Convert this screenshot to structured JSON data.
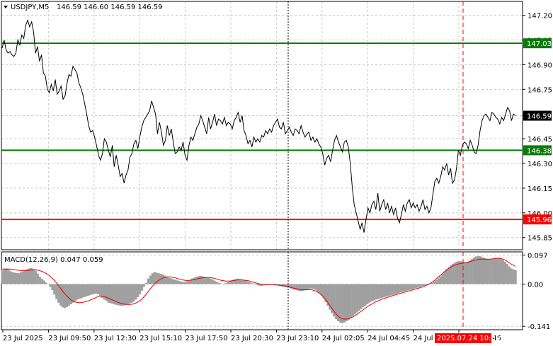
{
  "chart_header": {
    "symbol": "USDJPY,M5",
    "ohlc": "146.59 146.60 146.59 146.59",
    "indicator": "MACD(12,26,9) 0.047 0.059"
  },
  "colors": {
    "background": "#ffffff",
    "grid": "#c8c8c8",
    "price_line": "#000000",
    "green_line": "#0a7a0a",
    "red_line": "#ff0000",
    "macd_hist": "#a0a0a0",
    "signal_line": "#e00000",
    "time_marker": "#ff0000",
    "current_price_bg": "#000000"
  },
  "chart_data": [
    {
      "type": "line",
      "title": "USDJPY,M5",
      "ylim": [
        145.78,
        147.28
      ],
      "y_ticks": [
        "147.20",
        "147.05",
        "146.90",
        "146.75",
        "146.59",
        "146.45",
        "146.30",
        "146.15",
        "146.00",
        "145.85"
      ],
      "y_tick_values": [
        147.2,
        147.05,
        146.9,
        146.75,
        146.59,
        146.45,
        146.3,
        146.15,
        146.0,
        145.85
      ],
      "x_ticks": [
        "23 Jul 2025",
        "23 Jul 09:50",
        "23 Jul 12:30",
        "23 Jul 15:10",
        "23 Jul 17:50",
        "23 Jul 20:30",
        "23 Jul 23:10",
        "24 Jul 02:05",
        "24 Jul 04:45",
        "24 Jul 07:25",
        "24 Jul 12:45"
      ],
      "x_highlight_label": "2025.07.24 10:30",
      "current_price_label": "146.59",
      "current_price": 146.59,
      "horizontal_levels": [
        {
          "label": "147.03",
          "value": 147.03,
          "color": "green"
        },
        {
          "label": "146.38",
          "value": 146.38,
          "color": "green"
        },
        {
          "label": "145.96",
          "value": 145.96,
          "color": "red"
        }
      ],
      "series": [
        {
          "values": [
            147.0,
            147.05,
            146.99,
            146.97,
            146.98,
            146.96,
            146.95,
            146.97,
            147.05,
            147.02,
            147.08,
            147.06,
            147.14,
            147.17,
            147.13,
            147.16,
            147.1,
            146.97,
            147.01,
            146.92,
            146.96,
            146.85,
            146.83,
            146.75,
            146.73,
            146.78,
            146.74,
            146.81,
            146.72,
            146.74,
            146.77,
            146.69,
            146.71,
            146.79,
            146.84,
            146.83,
            146.89,
            146.87,
            146.85,
            146.79,
            146.76,
            146.72,
            146.66,
            146.6,
            146.53,
            146.49,
            146.5,
            146.46,
            146.41,
            146.35,
            146.32,
            146.36,
            146.45,
            146.43,
            146.38,
            146.34,
            146.41,
            146.28,
            146.35,
            146.29,
            146.22,
            146.24,
            146.18,
            146.23,
            146.26,
            146.34,
            146.36,
            146.42,
            146.44,
            146.39,
            146.46,
            146.52,
            146.56,
            146.58,
            146.6,
            146.62,
            146.68,
            146.64,
            146.6,
            146.48,
            146.55,
            146.49,
            146.41,
            146.44,
            146.53,
            146.47,
            146.51,
            146.43,
            146.36,
            146.37,
            146.4,
            146.38,
            146.43,
            146.35,
            146.32,
            146.41,
            146.46,
            146.44,
            146.48,
            146.52,
            146.54,
            146.59,
            146.56,
            146.52,
            146.48,
            146.58,
            146.51,
            146.55,
            146.6,
            146.53,
            146.57,
            146.56,
            146.54,
            146.58,
            146.53,
            146.55,
            146.54,
            146.51,
            146.56,
            146.58,
            146.61,
            146.55,
            146.59,
            146.5,
            146.47,
            146.42,
            146.44,
            146.4,
            146.46,
            146.43,
            146.45,
            146.43,
            146.47,
            146.46,
            146.5,
            146.48,
            146.51,
            146.49,
            146.53,
            146.55,
            146.57,
            146.52,
            146.51,
            146.55,
            146.48,
            146.5,
            146.52,
            146.49,
            146.47,
            146.51,
            146.5,
            146.48,
            146.53,
            146.49,
            146.46,
            146.48,
            146.49,
            146.44,
            146.46,
            146.43,
            146.45,
            146.42,
            146.4,
            146.36,
            146.29,
            146.33,
            146.35,
            146.31,
            146.38,
            146.44,
            146.47,
            146.43,
            146.4,
            146.37,
            146.43,
            146.44,
            146.4,
            146.3,
            146.16,
            146.05,
            146.0,
            145.95,
            145.9,
            145.94,
            145.88,
            145.96,
            146.03,
            146.0,
            146.05,
            146.07,
            146.02,
            146.12,
            146.01,
            146.05,
            146.08,
            146.02,
            146.06,
            146.0,
            146.04,
            145.99,
            146.03,
            145.97,
            145.94,
            145.99,
            146.05,
            146.01,
            146.06,
            146.08,
            146.03,
            146.06,
            146.03,
            146.05,
            146.01,
            146.04,
            146.08,
            146.02,
            146.04,
            146.0,
            146.03,
            146.11,
            146.19,
            146.21,
            146.18,
            146.22,
            146.28,
            146.26,
            146.3,
            146.23,
            146.27,
            146.18,
            146.2,
            146.27,
            146.38,
            146.35,
            146.41,
            146.43,
            146.42,
            146.39,
            146.44,
            146.41,
            146.37,
            146.36,
            146.41,
            146.5,
            146.56,
            146.59,
            146.6,
            146.58,
            146.56,
            146.61,
            146.6,
            146.58,
            146.57,
            146.54,
            146.58,
            146.56,
            146.6,
            146.64,
            146.62,
            146.56,
            146.6,
            146.59
          ]
        }
      ]
    },
    {
      "type": "bar",
      "title": "MACD(12,26,9)",
      "ylim": [
        -0.15,
        0.105
      ],
      "y_ticks": [
        "0.097",
        "0.00",
        "-0.141"
      ],
      "y_tick_values": [
        0.097,
        0.0,
        -0.141
      ],
      "series": [
        {
          "name": "MACD",
          "values": [
            0.045,
            0.05,
            0.052,
            0.048,
            0.043,
            0.04,
            0.038,
            0.037,
            0.036,
            0.04,
            0.043,
            0.046,
            0.05,
            0.052,
            0.054,
            0.05,
            0.045,
            0.035,
            0.025,
            0.018,
            0.012,
            0.005,
            0.0,
            -0.01,
            -0.02,
            -0.035,
            -0.05,
            -0.062,
            -0.072,
            -0.078,
            -0.08,
            -0.077,
            -0.072,
            -0.067,
            -0.062,
            -0.057,
            -0.052,
            -0.049,
            -0.047,
            -0.044,
            -0.042,
            -0.039,
            -0.037,
            -0.035,
            -0.033,
            -0.032,
            -0.034,
            -0.04,
            -0.046,
            -0.052,
            -0.057,
            -0.062,
            -0.064,
            -0.066,
            -0.068,
            -0.07,
            -0.071,
            -0.072,
            -0.072,
            -0.07,
            -0.068,
            -0.065,
            -0.062,
            -0.058,
            -0.052,
            -0.044,
            -0.034,
            -0.022,
            -0.009,
            0.004,
            0.018,
            0.028,
            0.036,
            0.04,
            0.038,
            0.036,
            0.034,
            0.032,
            0.028,
            0.024,
            0.021,
            0.019,
            0.016,
            0.014,
            0.012,
            0.01,
            0.008,
            0.007,
            0.008,
            0.01,
            0.014,
            0.018,
            0.021,
            0.024,
            0.026,
            0.027,
            0.026,
            0.024,
            0.022,
            0.02,
            0.018,
            0.014,
            0.01,
            0.007,
            0.004,
            0.002,
            0.0,
            0.003,
            0.006,
            0.009,
            0.012,
            0.015,
            0.017,
            0.018,
            0.016,
            0.014,
            0.012,
            0.01,
            0.008,
            0.005,
            0.002,
            -0.001,
            -0.003,
            -0.005,
            -0.006,
            -0.005,
            -0.004,
            -0.003,
            -0.002,
            -0.002,
            -0.003,
            -0.004,
            -0.005,
            -0.006,
            -0.008,
            -0.009,
            -0.01,
            -0.012,
            -0.014,
            -0.016,
            -0.018,
            -0.02,
            -0.022,
            -0.024,
            -0.023,
            -0.021,
            -0.018,
            -0.016,
            -0.015,
            -0.016,
            -0.019,
            -0.024,
            -0.03,
            -0.038,
            -0.048,
            -0.06,
            -0.072,
            -0.085,
            -0.097,
            -0.108,
            -0.117,
            -0.124,
            -0.128,
            -0.13,
            -0.128,
            -0.124,
            -0.119,
            -0.113,
            -0.107,
            -0.101,
            -0.095,
            -0.089,
            -0.083,
            -0.077,
            -0.072,
            -0.067,
            -0.062,
            -0.058,
            -0.055,
            -0.052,
            -0.05,
            -0.048,
            -0.046,
            -0.044,
            -0.042,
            -0.04,
            -0.038,
            -0.036,
            -0.034,
            -0.032,
            -0.03,
            -0.028,
            -0.026,
            -0.024,
            -0.022,
            -0.02,
            -0.018,
            -0.016,
            -0.014,
            -0.012,
            -0.01,
            -0.008,
            -0.006,
            -0.004,
            -0.002,
            0.001,
            0.004,
            0.008,
            0.013,
            0.019,
            0.026,
            0.034,
            0.042,
            0.05,
            0.057,
            0.063,
            0.068,
            0.072,
            0.075,
            0.077,
            0.076,
            0.074,
            0.072,
            0.074,
            0.078,
            0.083,
            0.088,
            0.092,
            0.094,
            0.093,
            0.09,
            0.087,
            0.085,
            0.083,
            0.082,
            0.083,
            0.085,
            0.087,
            0.088,
            0.085,
            0.08,
            0.074,
            0.067,
            0.059,
            0.052,
            0.049,
            0.047
          ]
        },
        {
          "values": [
            0.05,
            0.05,
            0.05,
            0.05,
            0.05,
            0.049,
            0.048,
            0.047,
            0.046,
            0.045,
            0.045,
            0.045,
            0.045,
            0.046,
            0.047,
            0.048,
            0.048,
            0.047,
            0.045,
            0.043,
            0.04,
            0.036,
            0.032,
            0.027,
            0.021,
            0.014,
            0.006,
            -0.003,
            -0.012,
            -0.021,
            -0.03,
            -0.038,
            -0.045,
            -0.051,
            -0.056,
            -0.059,
            -0.061,
            -0.062,
            -0.062,
            -0.061,
            -0.059,
            -0.057,
            -0.055,
            -0.052,
            -0.049,
            -0.046,
            -0.043,
            -0.041,
            -0.04,
            -0.041,
            -0.043,
            -0.046,
            -0.049,
            -0.052,
            -0.055,
            -0.058,
            -0.061,
            -0.063,
            -0.065,
            -0.067,
            -0.068,
            -0.068,
            -0.068,
            -0.067,
            -0.065,
            -0.062,
            -0.058,
            -0.053,
            -0.046,
            -0.039,
            -0.03,
            -0.021,
            -0.012,
            -0.004,
            0.003,
            0.009,
            0.014,
            0.018,
            0.021,
            0.023,
            0.024,
            0.024,
            0.023,
            0.022,
            0.02,
            0.018,
            0.016,
            0.014,
            0.013,
            0.012,
            0.012,
            0.013,
            0.014,
            0.015,
            0.017,
            0.019,
            0.02,
            0.021,
            0.022,
            0.022,
            0.022,
            0.021,
            0.02,
            0.018,
            0.016,
            0.014,
            0.012,
            0.011,
            0.01,
            0.01,
            0.01,
            0.011,
            0.012,
            0.013,
            0.014,
            0.014,
            0.014,
            0.013,
            0.012,
            0.011,
            0.009,
            0.007,
            0.005,
            0.003,
            0.001,
            0.0,
            -0.001,
            -0.002,
            -0.002,
            -0.002,
            -0.002,
            -0.002,
            -0.003,
            -0.003,
            -0.004,
            -0.005,
            -0.006,
            -0.007,
            -0.009,
            -0.01,
            -0.012,
            -0.014,
            -0.015,
            -0.017,
            -0.018,
            -0.019,
            -0.019,
            -0.019,
            -0.019,
            -0.019,
            -0.02,
            -0.022,
            -0.025,
            -0.029,
            -0.034,
            -0.041,
            -0.049,
            -0.058,
            -0.068,
            -0.078,
            -0.088,
            -0.097,
            -0.105,
            -0.111,
            -0.115,
            -0.117,
            -0.117,
            -0.116,
            -0.114,
            -0.111,
            -0.107,
            -0.103,
            -0.098,
            -0.093,
            -0.088,
            -0.083,
            -0.078,
            -0.073,
            -0.069,
            -0.065,
            -0.061,
            -0.058,
            -0.055,
            -0.052,
            -0.049,
            -0.047,
            -0.045,
            -0.042,
            -0.04,
            -0.038,
            -0.036,
            -0.034,
            -0.032,
            -0.03,
            -0.028,
            -0.026,
            -0.024,
            -0.022,
            -0.02,
            -0.018,
            -0.016,
            -0.014,
            -0.012,
            -0.01,
            -0.007,
            -0.004,
            -0.001,
            0.003,
            0.008,
            0.013,
            0.019,
            0.025,
            0.031,
            0.037,
            0.043,
            0.048,
            0.053,
            0.057,
            0.061,
            0.064,
            0.066,
            0.068,
            0.069,
            0.07,
            0.071,
            0.073,
            0.075,
            0.077,
            0.079,
            0.081,
            0.082,
            0.083,
            0.083,
            0.083,
            0.083,
            0.083,
            0.083,
            0.084,
            0.085,
            0.086,
            0.086,
            0.085,
            0.083,
            0.08,
            0.076,
            0.071,
            0.066,
            0.063,
            0.059
          ]
        }
      ]
    }
  ]
}
